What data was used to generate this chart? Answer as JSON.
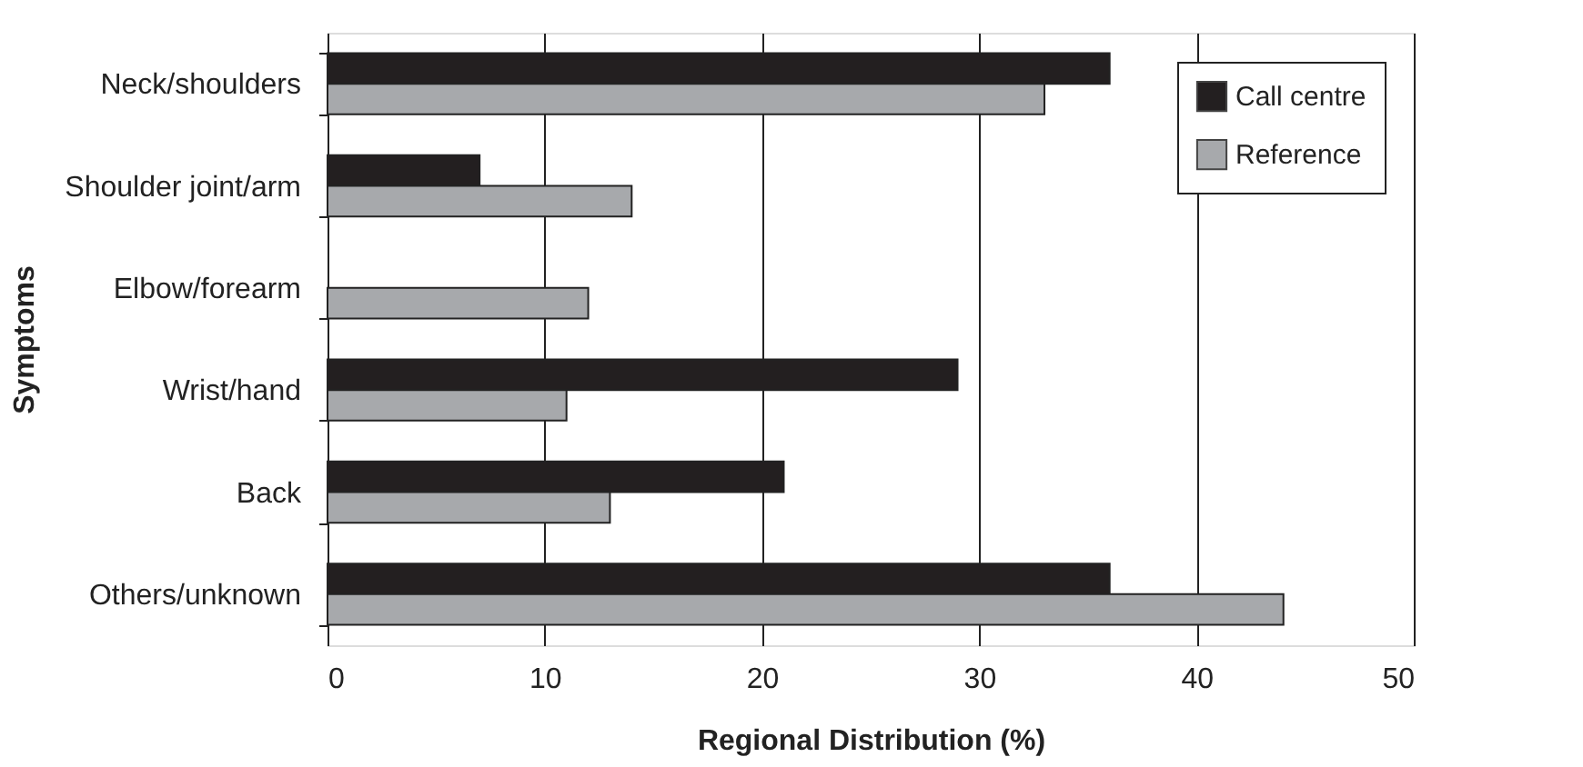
{
  "chart_data": {
    "type": "bar",
    "orientation": "horizontal",
    "xlabel": "Regional Distribution (%)",
    "ylabel": "Symptoms",
    "categories": [
      "Neck/shoulders",
      "Shoulder joint/arm",
      "Elbow/forearm",
      "Wrist/hand",
      "Back",
      "Others/unknown"
    ],
    "series": [
      {
        "name": "Call centre",
        "color": "#231f20",
        "values": [
          36,
          7,
          0,
          29,
          21,
          36
        ]
      },
      {
        "name": "Reference",
        "color": "#a7a9ac",
        "values": [
          33,
          14,
          12,
          11,
          13,
          44
        ]
      }
    ],
    "xlim": [
      0,
      50
    ],
    "xticks": [
      0,
      10,
      20,
      30,
      40,
      50
    ],
    "grid": "x",
    "legend": "top right"
  }
}
